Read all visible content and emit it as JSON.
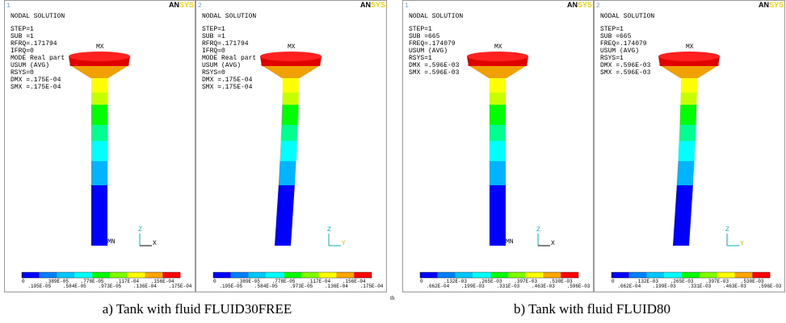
{
  "figures": [
    {
      "caption": "a) Tank with fluid FLUID30FREE",
      "panels": [
        {
          "number": "1",
          "logo": [
            "AN",
            "SYS"
          ],
          "title": "NODAL SOLUTION",
          "info": [
            "STEP=1",
            "SUB =1",
            "RFRQ=.171794",
            "IFRQ=0",
            "MODE Real part",
            "USUM    (AVG)",
            "RSYS=0",
            "DMX =.175E-04",
            "SMX =.175E-04"
          ],
          "max_label": "MX",
          "min_label": "MN",
          "axes": [
            "Z",
            "X"
          ],
          "legend_top": [
            "0",
            ".389E-05",
            ".778E-05",
            ".117E-04",
            ".156E-04"
          ],
          "legend_bottom": [
            ".195E-05",
            ".584E-05",
            ".973E-05",
            ".136E-04",
            ".175E-04"
          ]
        },
        {
          "number": "2",
          "logo": [
            "AN",
            "SYS"
          ],
          "title": "NODAL SOLUTION",
          "info": [
            "STEP=1",
            "SUB =1",
            "RFRQ=.171794",
            "IFRQ=0",
            "MODE Real part",
            "USUM    (AVG)",
            "RSYS=0",
            "DMX =.175E-04",
            "SMX =.175E-04"
          ],
          "max_label": "MX",
          "axes": [
            "Z",
            "Y"
          ],
          "legend_top": [
            "0",
            ".389E-05",
            ".778E-05",
            ".117E-04",
            ".156E-04"
          ],
          "legend_bottom": [
            ".195E-05",
            ".584E-05",
            ".973E-05",
            ".136E-04",
            ".175E-04"
          ]
        }
      ]
    },
    {
      "caption": "b) Tank with fluid FLUID80",
      "panels": [
        {
          "number": "1",
          "logo": [
            "AN",
            "SYS"
          ],
          "title": "NODAL SOLUTION",
          "info": [
            "STEP=1",
            "SUB =665",
            "FREQ=.174079",
            "USUM    (AVG)",
            "RSYS=1",
            "DMX =.596E-03",
            "SMX =.596E-03"
          ],
          "max_label": "MX",
          "min_label": "MN",
          "axes": [
            "Z",
            "X"
          ],
          "legend_top": [
            "0",
            ".132E-03",
            ".265E-03",
            ".397E-03",
            ".530E-03"
          ],
          "legend_bottom": [
            ".662E-04",
            ".199E-03",
            ".331E-03",
            ".463E-03",
            ".596E-03"
          ]
        },
        {
          "number": "2",
          "logo": [
            "AN",
            "SYS"
          ],
          "title": "NODAL SOLUTION",
          "info": [
            "STEP=1",
            "SUB =665",
            "FREQ=.174079",
            "USUM    (AVG)",
            "RSYS=1",
            "DMX =.596E-03",
            "SMX =.596E-03"
          ],
          "max_label": "MX",
          "axes": [
            "Z",
            "Y"
          ],
          "legend_top": [
            "0",
            ".132E-03",
            ".265E-03",
            ".397E-03",
            ".530E-03"
          ],
          "legend_bottom": [
            ".662E-04",
            ".199E-03",
            ".331E-03",
            ".463E-03",
            ".596E-03"
          ]
        }
      ]
    }
  ],
  "stray_text": "th"
}
